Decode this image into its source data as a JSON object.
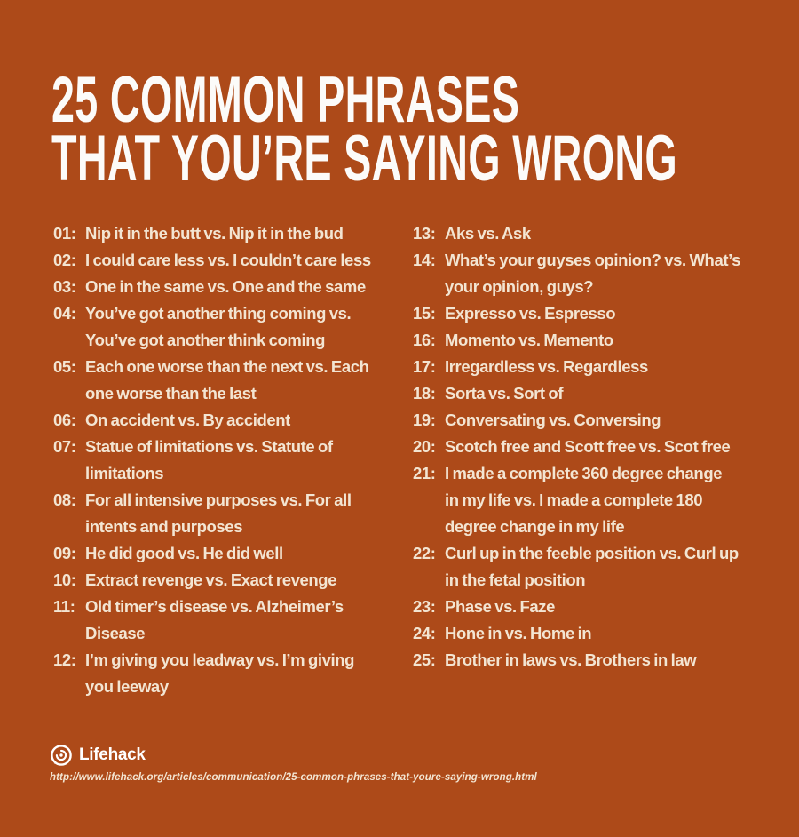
{
  "page": {
    "background_color": "#ad4a19",
    "title_color": "#fcfbf9",
    "text_color": "#f3e5d2"
  },
  "title": {
    "lines": [
      "25 COMMON PHRASES",
      "THAT YOU’RE SAYING WRONG"
    ]
  },
  "list": {
    "left": [
      {
        "num": "01:",
        "text": [
          "Nip it in the butt vs. Nip it in the bud"
        ]
      },
      {
        "num": "02:",
        "text": [
          "I could care less vs. I couldn’t care less"
        ]
      },
      {
        "num": "03:",
        "text": [
          "One in the same vs. One and the same"
        ]
      },
      {
        "num": "04:",
        "text": [
          "You’ve got another thing coming vs.",
          "You’ve got another think coming"
        ]
      },
      {
        "num": "05:",
        "text": [
          "Each one worse than the next vs. Each",
          "one worse than the last"
        ]
      },
      {
        "num": "06:",
        "text": [
          "On accident vs. By accident"
        ]
      },
      {
        "num": "07:",
        "text": [
          "Statue of limitations vs. Statute of",
          "limitations"
        ]
      },
      {
        "num": "08:",
        "text": [
          "For all intensive purposes vs. For all",
          "intents and purposes"
        ]
      },
      {
        "num": "09:",
        "text": [
          "He did good vs. He did well"
        ]
      },
      {
        "num": "10:",
        "text": [
          "Extract revenge vs. Exact revenge"
        ]
      },
      {
        "num": "11:",
        "text": [
          "Old timer’s disease vs. Alzheimer’s",
          "Disease"
        ]
      },
      {
        "num": "12:",
        "text": [
          "I’m giving you leadway vs. I’m giving",
          "you leeway"
        ]
      }
    ],
    "right": [
      {
        "num": "13:",
        "text": [
          "Aks vs. Ask"
        ]
      },
      {
        "num": "14:",
        "text": [
          "What’s your guyses opinion? vs. What’s",
          "your opinion, guys?"
        ]
      },
      {
        "num": "15:",
        "text": [
          "Expresso vs. Espresso"
        ]
      },
      {
        "num": "16:",
        "text": [
          "Momento vs. Memento"
        ]
      },
      {
        "num": "17:",
        "text": [
          "Irregardless vs. Regardless"
        ]
      },
      {
        "num": "18:",
        "text": [
          "Sorta vs. Sort of"
        ]
      },
      {
        "num": "19:",
        "text": [
          "Conversating vs. Conversing"
        ]
      },
      {
        "num": "20:",
        "text": [
          "Scotch free and Scott free vs. Scot free"
        ]
      },
      {
        "num": "21:",
        "text": [
          "I made a complete 360 degree change",
          "in my life vs. I made a complete 180",
          "degree change in my life"
        ]
      },
      {
        "num": "22:",
        "text": [
          "Curl up in the feeble position vs. Curl up",
          "in the fetal position"
        ]
      },
      {
        "num": "23:",
        "text": [
          "Phase vs. Faze"
        ]
      },
      {
        "num": "24:",
        "text": [
          "Hone in vs. Home in"
        ]
      },
      {
        "num": "25:",
        "text": [
          "Brother in laws vs. Brothers in law"
        ]
      }
    ]
  },
  "footer": {
    "brand": "Lifehack",
    "logo_icon": "lifehack-swirl-bubble-icon",
    "url": "http://www.lifehack.org/articles/communication/25-common-phrases-that-youre-saying-wrong.html"
  }
}
